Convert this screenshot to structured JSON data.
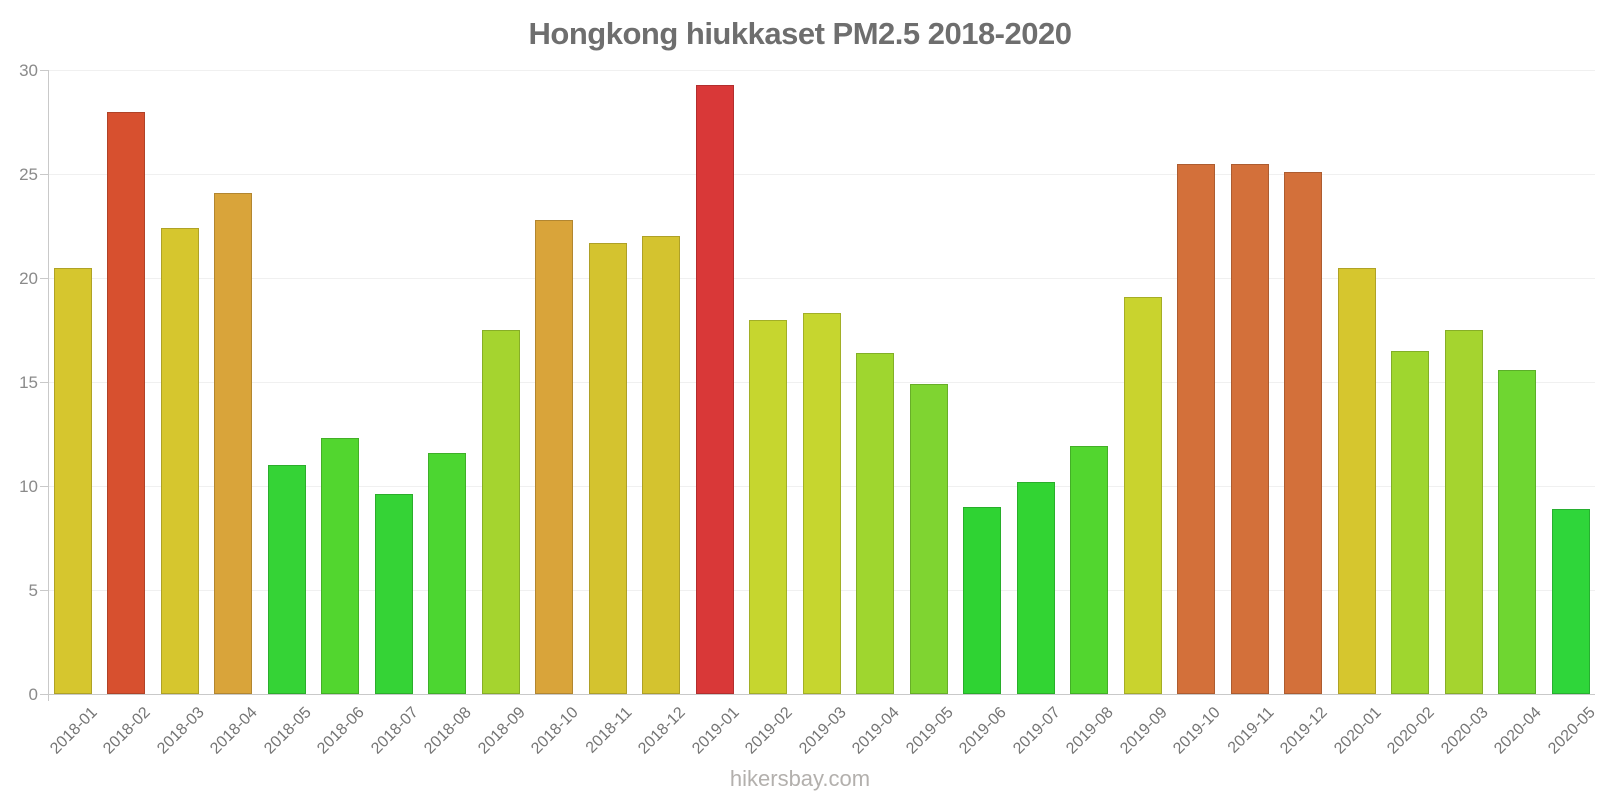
{
  "title": "Hongkong hiukkaset PM2.5 2018-2020",
  "watermark": "hikersbay.com",
  "chart_data": {
    "type": "bar",
    "title": "Hongkong hiukkaset PM2.5 2018-2020",
    "xlabel": "",
    "ylabel": "",
    "ylim": [
      0,
      30
    ],
    "yticks": [
      0,
      5,
      10,
      15,
      20,
      25,
      30
    ],
    "grid": true,
    "legend": "none",
    "categories": [
      "2018-01",
      "2018-02",
      "2018-03",
      "2018-04",
      "2018-05",
      "2018-06",
      "2018-07",
      "2018-08",
      "2018-09",
      "2018-10",
      "2018-11",
      "2018-12",
      "2019-01",
      "2019-02",
      "2019-03",
      "2019-04",
      "2019-05",
      "2019-06",
      "2019-07",
      "2019-08",
      "2019-09",
      "2019-10",
      "2019-11",
      "2019-12",
      "2020-01",
      "2020-02",
      "2020-03",
      "2020-04",
      "2020-05"
    ],
    "values": [
      20.5,
      28.0,
      22.4,
      24.1,
      11.0,
      12.3,
      9.6,
      11.6,
      17.5,
      22.8,
      21.7,
      22.0,
      29.3,
      18.0,
      18.3,
      16.4,
      14.9,
      9.0,
      10.2,
      11.9,
      19.1,
      25.5,
      25.5,
      25.1,
      20.5,
      16.5,
      17.5,
      15.6,
      8.9
    ],
    "bar_colors": [
      "#d6c62e",
      "#d7502f",
      "#d6c62e",
      "#d9a43a",
      "#35d336",
      "#52d62f",
      "#35d336",
      "#4cd631",
      "#a5d42f",
      "#d9a43a",
      "#d4c32f",
      "#d4c32f",
      "#d93838",
      "#c6d62f",
      "#c6d62f",
      "#9fd62f",
      "#7fd431",
      "#2fd333",
      "#32d433",
      "#52d62f",
      "#c9d32e",
      "#d3703a",
      "#d3703a",
      "#d3703a",
      "#d6c62e",
      "#9fd62f",
      "#a5d42f",
      "#6fd631",
      "#2fd63a"
    ]
  },
  "colors": {
    "title_text": "#6e6e6e",
    "axis": "#c9c9c9",
    "gridline": "#f0f0f0",
    "y_tick_label": "#8a8a8a",
    "x_tick_label": "#757575",
    "watermark_text": "#b3b0ad",
    "background": "#ffffff"
  }
}
